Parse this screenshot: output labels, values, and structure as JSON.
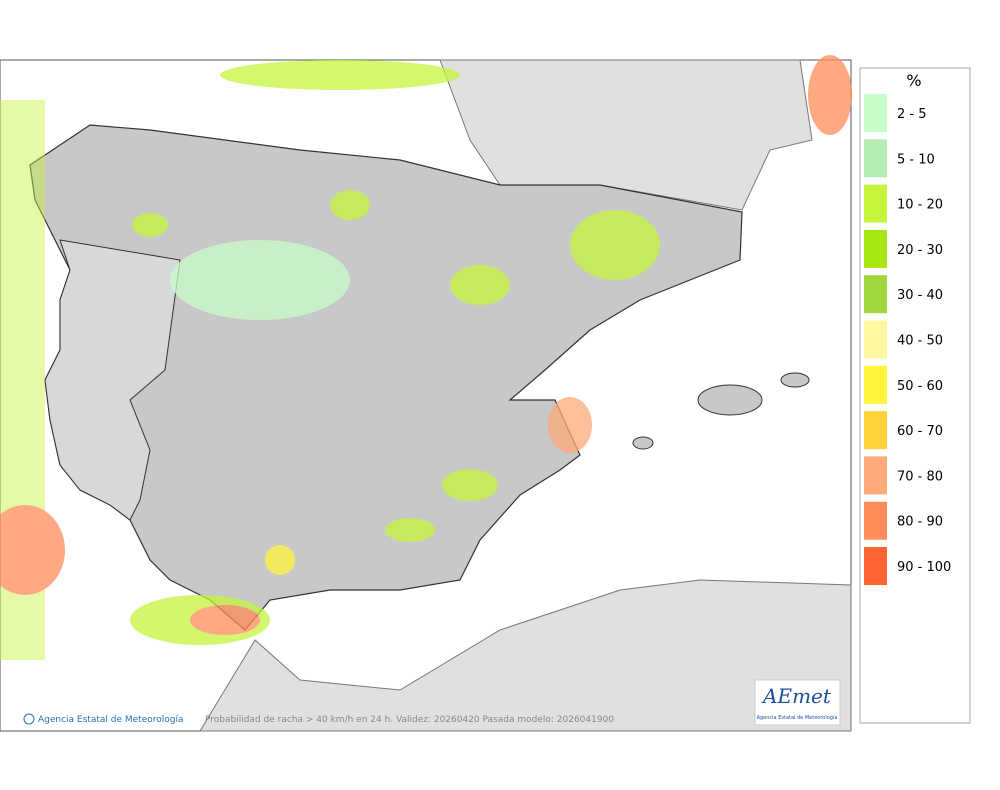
{
  "legend": {
    "title": "%",
    "items": [
      {
        "label": "2 - 5",
        "color": "#c8fcc8"
      },
      {
        "label": "5 - 10",
        "color": "#b4ecb4"
      },
      {
        "label": "10 - 20",
        "color": "#c4f53c"
      },
      {
        "label": "20 - 30",
        "color": "#a8e614"
      },
      {
        "label": "30 - 40",
        "color": "#a0d83c"
      },
      {
        "label": "40 - 50",
        "color": "#fff8a0"
      },
      {
        "label": "50 - 60",
        "color": "#fff53c"
      },
      {
        "label": "60 - 70",
        "color": "#ffd23c"
      },
      {
        "label": "70 - 80",
        "color": "#ffaa78"
      },
      {
        "label": "80 - 90",
        "color": "#ff8c5a"
      },
      {
        "label": "90 - 100",
        "color": "#ff6432"
      }
    ]
  },
  "footer": {
    "copyright": "Agencia Estatal de Meteorología",
    "caption": "Probabilidad de racha > 40 km/h en 24 h. Validez: 20260420 Pasada modelo: 2026041900"
  },
  "logo": {
    "name": "AEmet",
    "subtitle": "Agencia Estatal de Meteorología"
  }
}
